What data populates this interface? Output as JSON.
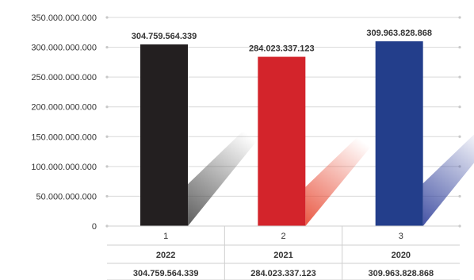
{
  "chart_data": {
    "type": "bar",
    "categories": [
      "1",
      "2",
      "3"
    ],
    "values": [
      304759564339,
      284023337123,
      309963828868
    ],
    "data_labels": [
      "304.759.564.339",
      "284.023.337.123",
      "309.963.828.868"
    ],
    "ylim": [
      0,
      350000000000
    ],
    "y_ticks": [
      "0",
      "50.000.000.000",
      "100.000.000.000",
      "150.000.000.000",
      "200.000.000.000",
      "250.000.000.000",
      "300.000.000.000",
      "350.000.000.000"
    ],
    "grid": true,
    "legend": "none",
    "table": {
      "years": [
        "2022",
        "2021",
        "2020"
      ],
      "values": [
        "304.759.564.339",
        "284.023.337.123",
        "309.963.828.868"
      ]
    },
    "colors": {
      "bars": [
        "#231f20",
        "#d3242b",
        "#233e8b"
      ],
      "shadows": [
        "#555555",
        "#e8503a",
        "#3b4aa0"
      ],
      "grid": "#d9d9d9",
      "text": "#333333"
    }
  }
}
